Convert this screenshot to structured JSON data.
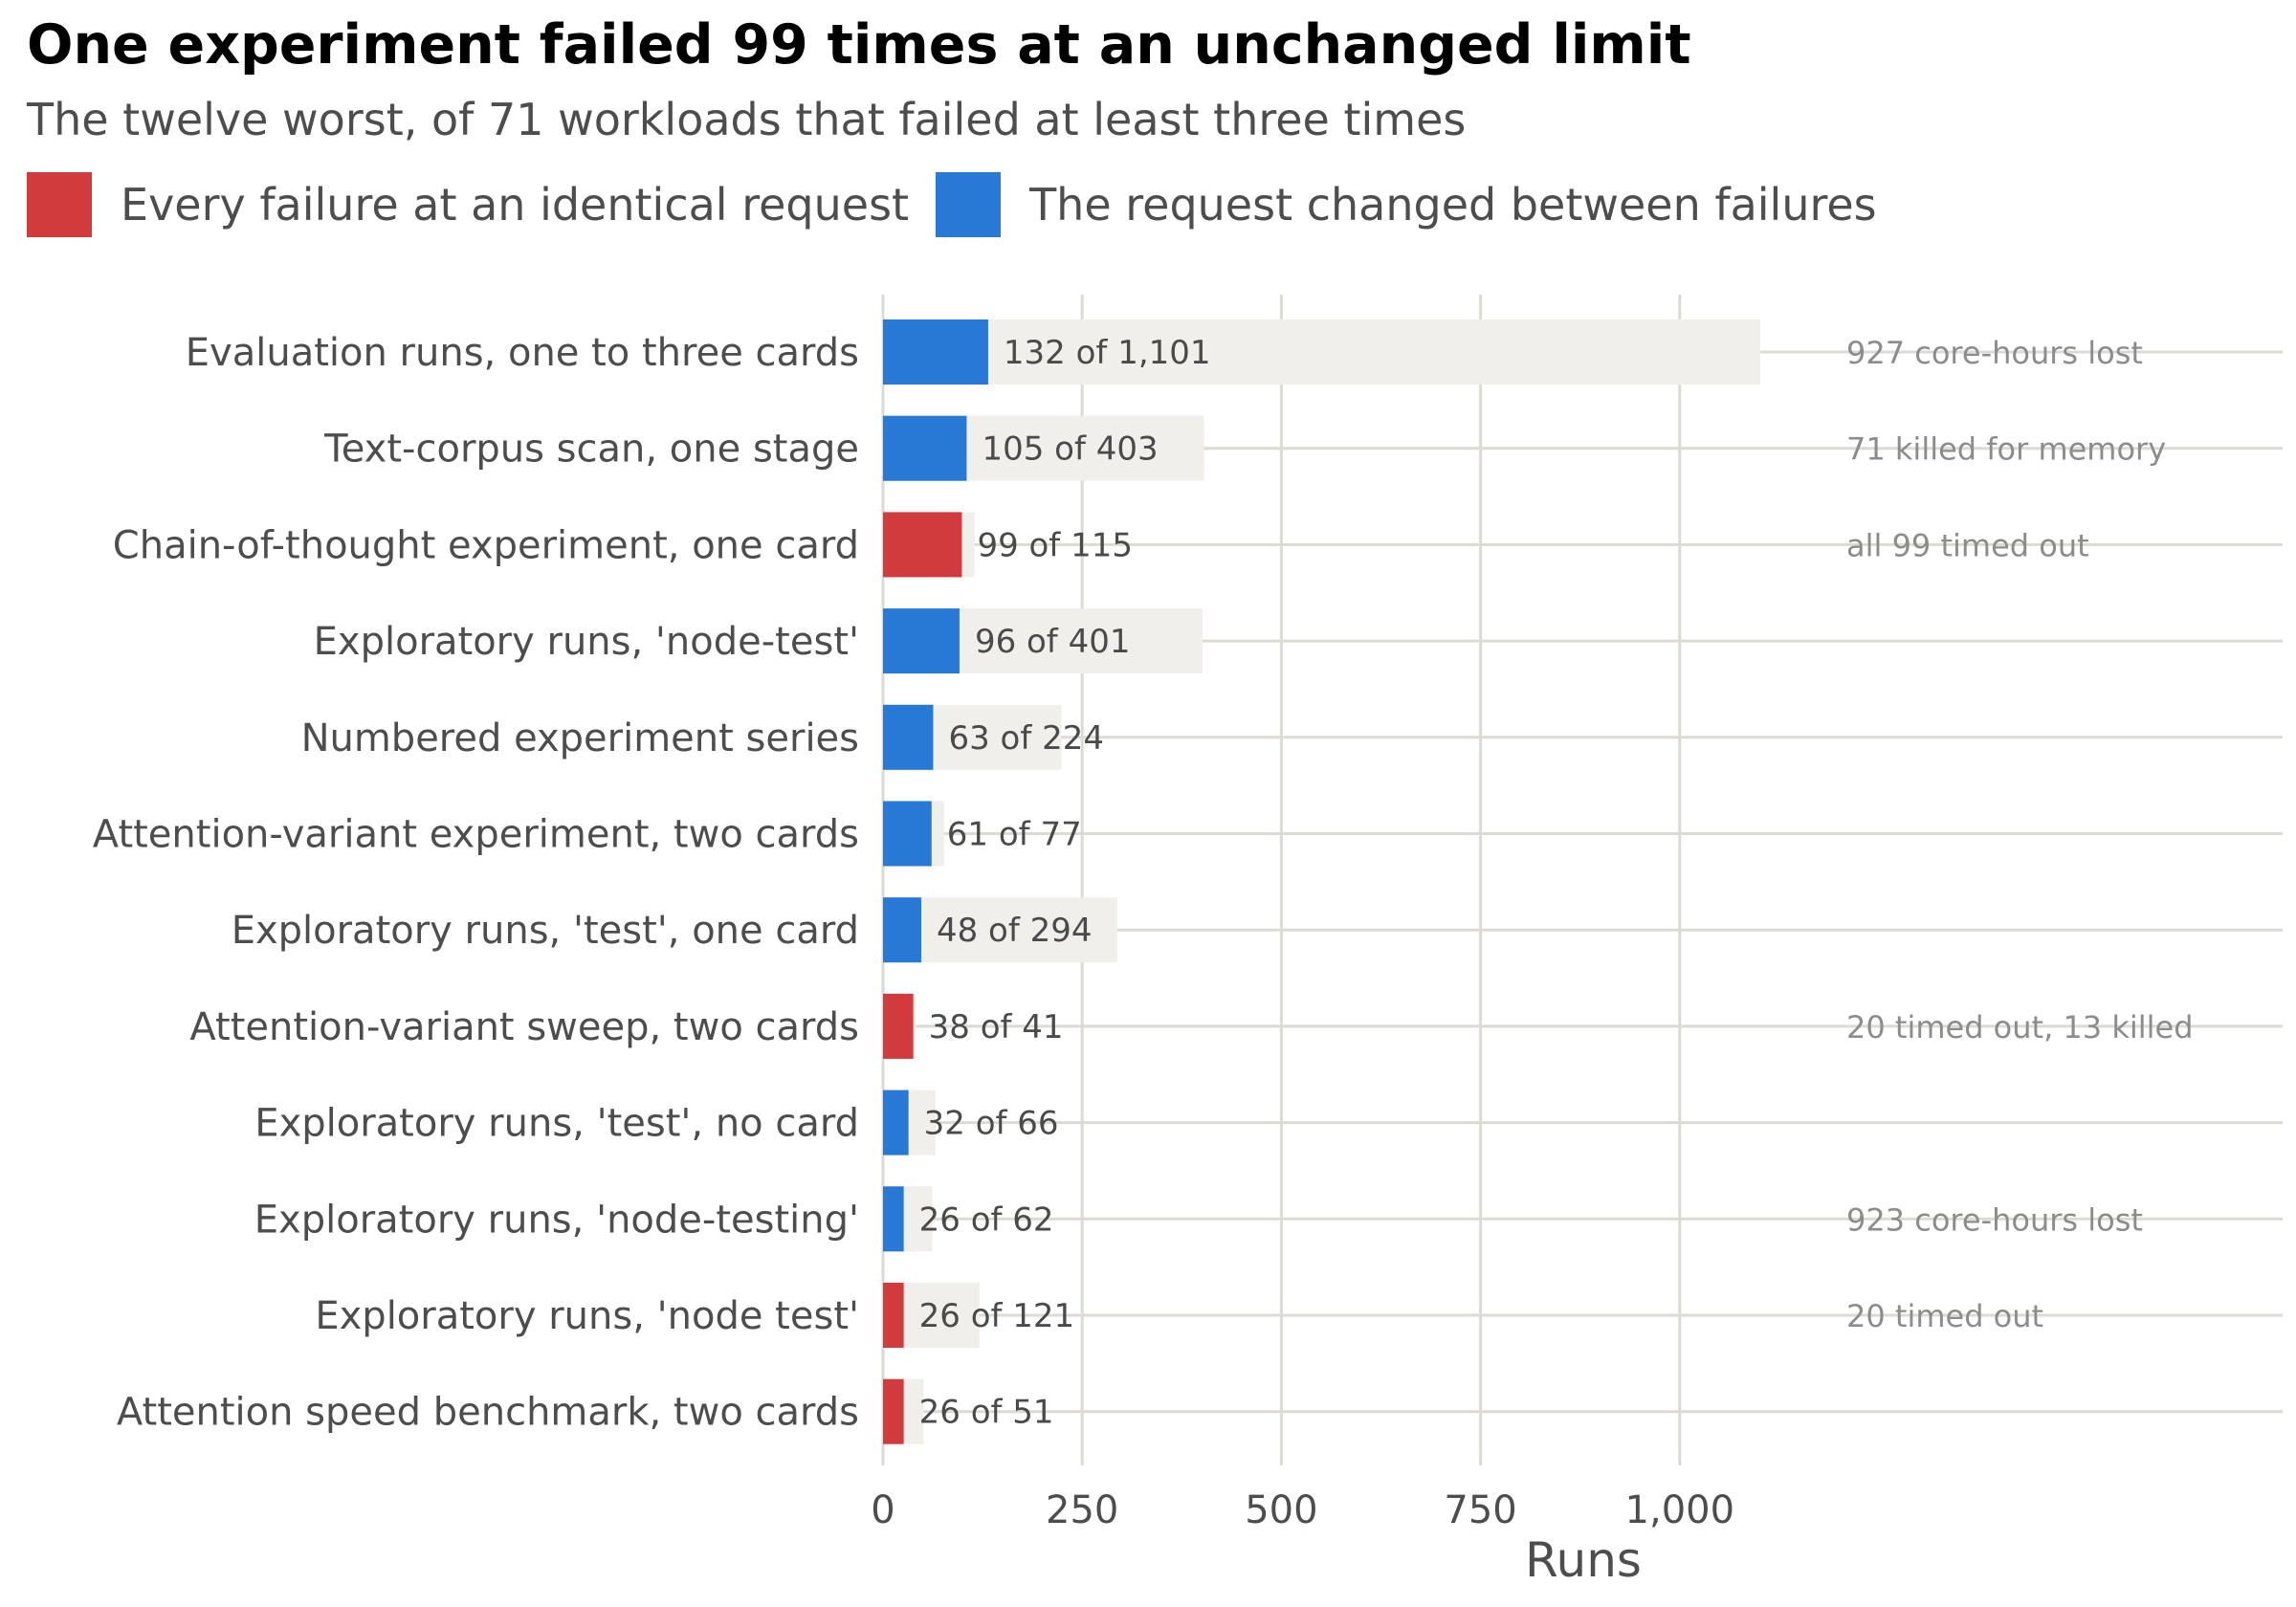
{
  "chart_data": {
    "type": "bar",
    "title": "One experiment failed 99 times at an unchanged limit",
    "subtitle": "The twelve worst, of 71 workloads that failed at least three times",
    "xlabel": "Runs",
    "ylabel": "",
    "xlim": [
      0,
      1100
    ],
    "x_ticks": [
      0,
      250,
      500,
      750,
      1000
    ],
    "x_tick_labels": [
      "0",
      "250",
      "500",
      "750",
      "1,000"
    ],
    "grid": true,
    "legend_position": "top-left",
    "legend": [
      {
        "key": "identical",
        "label": "Every failure at an identical request",
        "color": "#d13b3d"
      },
      {
        "key": "changed",
        "label": "The request changed between failures",
        "color": "#2878d6"
      }
    ],
    "track_color": "#f0efeb",
    "categories": [
      "Evaluation runs, one to three cards",
      "Text-corpus scan, one stage",
      "Chain-of-thought experiment, one card",
      "Exploratory runs, 'node-test'",
      "Numbered experiment series",
      "Attention-variant experiment, two cards",
      "Exploratory runs, 'test', one card",
      "Attention-variant sweep, two cards",
      "Exploratory runs, 'test', no card",
      "Exploratory runs, 'node-testing'",
      "Exploratory runs, 'node test'",
      "Attention speed benchmark, two cards"
    ],
    "series": [
      {
        "name": "Failed runs",
        "values": [
          132,
          105,
          99,
          96,
          63,
          61,
          48,
          38,
          32,
          26,
          26,
          26
        ]
      },
      {
        "name": "Total runs",
        "values": [
          1101,
          403,
          115,
          401,
          224,
          77,
          294,
          41,
          66,
          62,
          121,
          51
        ]
      }
    ],
    "failure_type": [
      "changed",
      "changed",
      "identical",
      "changed",
      "changed",
      "changed",
      "changed",
      "identical",
      "changed",
      "changed",
      "identical",
      "identical"
    ],
    "value_labels": [
      "132 of 1,101",
      "105 of 403",
      "99 of 115",
      "96 of 401",
      "63 of 224",
      "61 of 77",
      "48 of 294",
      "38 of 41",
      "32 of 66",
      "26 of 62",
      "26 of 121",
      "26 of 51"
    ],
    "annotations": [
      "927 core-hours lost",
      "71 killed for memory",
      "all 99 timed out",
      "",
      "",
      "",
      "",
      "20 timed out, 13 killed",
      "",
      "923 core-hours lost",
      "20 timed out",
      ""
    ]
  }
}
